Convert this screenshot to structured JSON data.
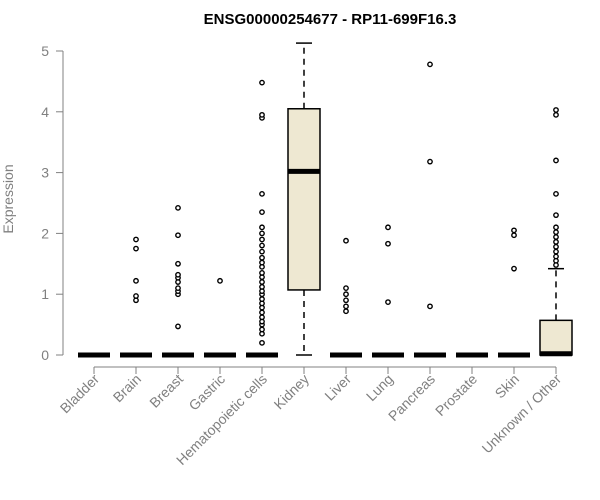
{
  "chart_data": {
    "type": "boxplot",
    "title": "ENSG00000254677 - RP11-699F16.3",
    "xlabel": "",
    "ylabel": "Expression",
    "ylim": [
      0,
      5.2
    ],
    "yticks": [
      0,
      1,
      2,
      3,
      4,
      5
    ],
    "ytick_labels": [
      "0",
      "1",
      "2",
      "3",
      "4",
      "5"
    ],
    "categories": [
      "Bladder",
      "Brain",
      "Breast",
      "Gastric",
      "Hematopoietic cells",
      "Kidney",
      "Liver",
      "Lung",
      "Pancreas",
      "Prostate",
      "Skin",
      "Unknown / Other"
    ],
    "boxes": [
      {
        "name": "Bladder",
        "q1": 0,
        "median": 0,
        "q3": 0,
        "whisker_low": 0,
        "whisker_high": 0,
        "outliers": []
      },
      {
        "name": "Brain",
        "q1": 0,
        "median": 0,
        "q3": 0,
        "whisker_low": 0,
        "whisker_high": 0,
        "outliers": [
          0.9,
          0.97,
          1.22,
          1.75,
          1.9
        ]
      },
      {
        "name": "Breast",
        "q1": 0,
        "median": 0,
        "q3": 0,
        "whisker_low": 0,
        "whisker_high": 0,
        "outliers": [
          0.47,
          1.0,
          1.05,
          1.1,
          1.2,
          1.27,
          1.32,
          1.5,
          1.97,
          2.42
        ]
      },
      {
        "name": "Gastric",
        "q1": 0,
        "median": 0,
        "q3": 0,
        "whisker_low": 0,
        "whisker_high": 0,
        "outliers": [
          1.22
        ]
      },
      {
        "name": "Hematopoietic cells",
        "q1": 0,
        "median": 0,
        "q3": 0,
        "whisker_low": 0,
        "whisker_high": 0,
        "outliers": [
          0.2,
          0.35,
          0.42,
          0.5,
          0.55,
          0.62,
          0.7,
          0.78,
          0.85,
          0.92,
          1.0,
          1.05,
          1.12,
          1.2,
          1.28,
          1.35,
          1.45,
          1.52,
          1.6,
          1.7,
          1.8,
          1.9,
          2.0,
          2.1,
          2.35,
          2.65,
          3.9,
          3.95,
          4.48
        ]
      },
      {
        "name": "Kidney",
        "q1": 1.07,
        "median": 3.02,
        "q3": 4.05,
        "whisker_low": 0,
        "whisker_high": 5.13,
        "outliers": []
      },
      {
        "name": "Liver",
        "q1": 0,
        "median": 0,
        "q3": 0,
        "whisker_low": 0,
        "whisker_high": 0,
        "outliers": [
          0.72,
          0.8,
          0.9,
          1.0,
          1.1,
          1.88
        ]
      },
      {
        "name": "Lung",
        "q1": 0,
        "median": 0,
        "q3": 0,
        "whisker_low": 0,
        "whisker_high": 0,
        "outliers": [
          0.87,
          1.83,
          2.1
        ]
      },
      {
        "name": "Pancreas",
        "q1": 0,
        "median": 0,
        "q3": 0,
        "whisker_low": 0,
        "whisker_high": 0,
        "outliers": [
          0.8,
          3.18,
          4.78
        ]
      },
      {
        "name": "Prostate",
        "q1": 0,
        "median": 0,
        "q3": 0,
        "whisker_low": 0,
        "whisker_high": 0,
        "outliers": []
      },
      {
        "name": "Skin",
        "q1": 0,
        "median": 0,
        "q3": 0,
        "whisker_low": 0,
        "whisker_high": 0,
        "outliers": [
          1.42,
          1.97,
          2.05
        ]
      },
      {
        "name": "Unknown / Other",
        "q1": 0,
        "median": 0.02,
        "q3": 0.57,
        "whisker_low": 0,
        "whisker_high": 1.42,
        "outliers": [
          1.48,
          1.55,
          1.62,
          1.7,
          1.78,
          1.86,
          1.94,
          2.02,
          2.1,
          2.3,
          2.65,
          3.2,
          3.95,
          4.03
        ]
      }
    ],
    "box_fill": "#EEE8D2",
    "box_stroke": "#000000",
    "axis_color": "#808080",
    "grid": false
  }
}
